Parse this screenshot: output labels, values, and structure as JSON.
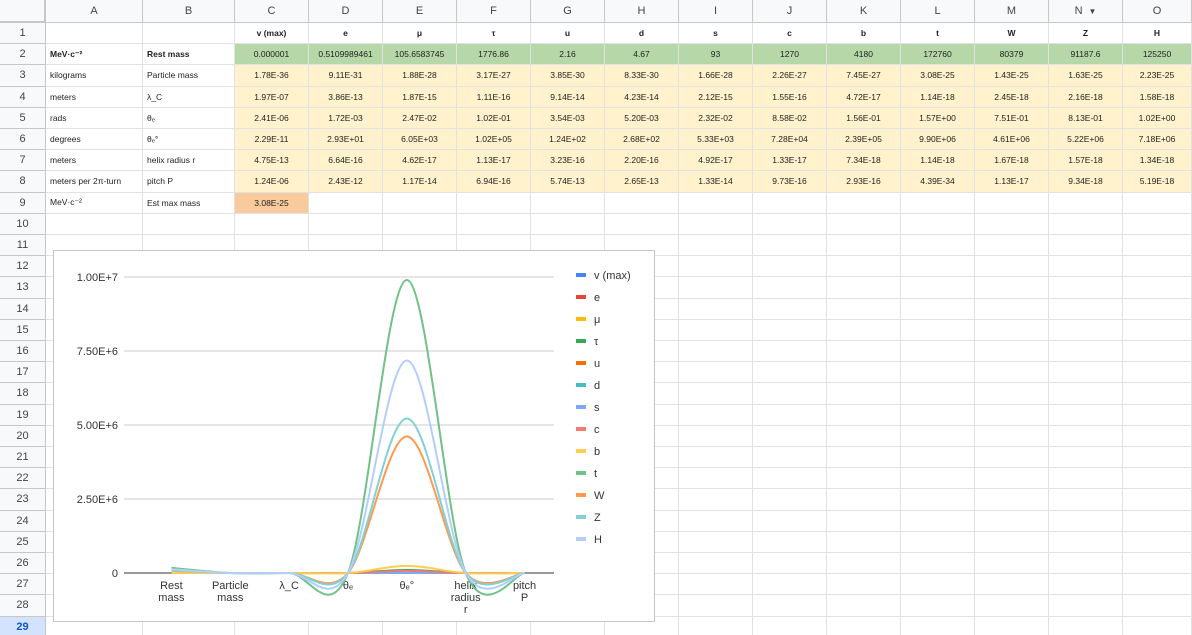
{
  "columns": [
    "A",
    "B",
    "C",
    "D",
    "E",
    "F",
    "G",
    "H",
    "I",
    "J",
    "K",
    "L",
    "M",
    "N",
    "O"
  ],
  "rows": [
    "1",
    "2",
    "3",
    "4",
    "5",
    "6",
    "7",
    "8",
    "9",
    "10",
    "11",
    "12",
    "13",
    "14",
    "15",
    "16",
    "17",
    "18",
    "19",
    "20",
    "21",
    "22",
    "23",
    "24",
    "25",
    "26",
    "27",
    "28",
    "29"
  ],
  "selected_row": "29",
  "filter_column": "N",
  "table": [
    [
      "",
      "",
      "v (max)",
      "e",
      "μ",
      "τ",
      "u",
      "d",
      "s",
      "c",
      "b",
      "t",
      "W",
      "Z",
      "H"
    ],
    [
      "MeV·c⁻²",
      "Rest mass",
      "0.000001",
      "0.5109989461",
      "105.6583745",
      "1776.86",
      "2.16",
      "4.67",
      "93",
      "1270",
      "4180",
      "172760",
      "80379",
      "91187.6",
      "125250"
    ],
    [
      "kilograms",
      "Particle mass",
      "1.78E-36",
      "9.11E-31",
      "1.88E-28",
      "3.17E-27",
      "3.85E-30",
      "8.33E-30",
      "1.66E-28",
      "2.26E-27",
      "7.45E-27",
      "3.08E-25",
      "1.43E-25",
      "1.63E-25",
      "2.23E-25"
    ],
    [
      "meters",
      "λ_C",
      "1.97E-07",
      "3.86E-13",
      "1.87E-15",
      "1.11E-16",
      "9.14E-14",
      "4.23E-14",
      "2.12E-15",
      "1.55E-16",
      "4.72E-17",
      "1.14E-18",
      "2.45E-18",
      "2.16E-18",
      "1.58E-18"
    ],
    [
      "rads",
      "θₑ",
      "2.41E-06",
      "1.72E-03",
      "2.47E-02",
      "1.02E-01",
      "3.54E-03",
      "5.20E-03",
      "2.32E-02",
      "8.58E-02",
      "1.56E-01",
      "1.57E+00",
      "7.51E-01",
      "8.13E-01",
      "1.02E+00"
    ],
    [
      "degrees",
      "θₑ°",
      "2.29E-11",
      "2.93E+01",
      "6.05E+03",
      "1.02E+05",
      "1.24E+02",
      "2.68E+02",
      "5.33E+03",
      "7.28E+04",
      "2.39E+05",
      "9.90E+06",
      "4.61E+06",
      "5.22E+06",
      "7.18E+06"
    ],
    [
      "meters",
      "helix radius r",
      "4.75E-13",
      "6.64E-16",
      "4.62E-17",
      "1.13E-17",
      "3.23E-16",
      "2.20E-16",
      "4.92E-17",
      "1.33E-17",
      "7.34E-18",
      "1.14E-18",
      "1.67E-18",
      "1.57E-18",
      "1.34E-18"
    ],
    [
      "meters per 2π-turn",
      "pitch P",
      "1.24E-06",
      "2.43E-12",
      "1.17E-14",
      "6.94E-16",
      "5.74E-13",
      "2.65E-13",
      "1.33E-14",
      "9.73E-16",
      "2.93E-16",
      "4.39E-34",
      "1.13E-17",
      "9.34E-18",
      "5.19E-18"
    ],
    [
      "MeV·c⁻²",
      "Est max mass",
      "3.08E-25",
      "",
      "",
      "",
      "",
      "",
      "",
      "",
      "",
      "",
      "",
      "",
      ""
    ]
  ],
  "chart_data": {
    "type": "line",
    "title": "",
    "xlabel": "",
    "ylabel": "",
    "categories": [
      "Rest mass",
      "Particle mass",
      "λ_C",
      "θₑ",
      "θₑ°",
      "helix radius r",
      "pitch P"
    ],
    "ylim": [
      0,
      10000000
    ],
    "yticks": [
      "0",
      "2.50E+6",
      "5.00E+6",
      "7.50E+6",
      "1.00E+7"
    ],
    "legend_position": "right",
    "series": [
      {
        "name": "v (max)",
        "color": "#4285f4",
        "values": [
          1e-06,
          1.78e-36,
          1.97e-07,
          2.41e-06,
          2.29e-11,
          4.75e-13,
          1.24e-06
        ]
      },
      {
        "name": "e",
        "color": "#ea4335",
        "values": [
          0.511,
          9.11e-31,
          3.86e-13,
          0.00172,
          29.3,
          6.64e-16,
          2.43e-12
        ]
      },
      {
        "name": "μ",
        "color": "#fbbc04",
        "values": [
          105.66,
          1.88e-28,
          1.87e-15,
          0.0247,
          6050,
          4.62e-17,
          1.17e-14
        ]
      },
      {
        "name": "τ",
        "color": "#34a853",
        "values": [
          1776.86,
          3.17e-27,
          1.11e-16,
          0.102,
          102000,
          1.13e-17,
          6.94e-16
        ]
      },
      {
        "name": "u",
        "color": "#ff6d01",
        "values": [
          2.16,
          3.85e-30,
          9.14e-14,
          0.00354,
          124,
          3.23e-16,
          5.74e-13
        ]
      },
      {
        "name": "d",
        "color": "#46bdc6",
        "values": [
          4.67,
          8.33e-30,
          4.23e-14,
          0.0052,
          268,
          2.2e-16,
          2.65e-13
        ]
      },
      {
        "name": "s",
        "color": "#7baaf7",
        "values": [
          93,
          1.66e-28,
          2.12e-15,
          0.0232,
          5330,
          4.92e-17,
          1.33e-14
        ]
      },
      {
        "name": "c",
        "color": "#f07b72",
        "values": [
          1270,
          2.26e-27,
          1.55e-16,
          0.0858,
          72800,
          1.33e-17,
          9.73e-16
        ]
      },
      {
        "name": "b",
        "color": "#fcd04f",
        "values": [
          4180,
          7.45e-27,
          4.72e-17,
          0.156,
          239000,
          7.34e-18,
          2.93e-16
        ]
      },
      {
        "name": "t",
        "color": "#71c287",
        "values": [
          172760,
          3.08e-25,
          1.14e-18,
          1.57,
          9900000,
          1.14e-18,
          4.39e-34
        ]
      },
      {
        "name": "W",
        "color": "#ff994d",
        "values": [
          80379,
          1.43e-25,
          2.45e-18,
          0.751,
          4610000,
          1.67e-18,
          1.13e-17
        ]
      },
      {
        "name": "Z",
        "color": "#7ed1d7",
        "values": [
          91187.6,
          1.63e-25,
          2.16e-18,
          0.813,
          5220000,
          1.57e-18,
          9.34e-18
        ]
      },
      {
        "name": "H",
        "color": "#b3cefb",
        "values": [
          125250,
          2.23e-25,
          1.58e-18,
          1.02,
          7180000,
          1.34e-18,
          5.19e-18
        ]
      }
    ]
  }
}
